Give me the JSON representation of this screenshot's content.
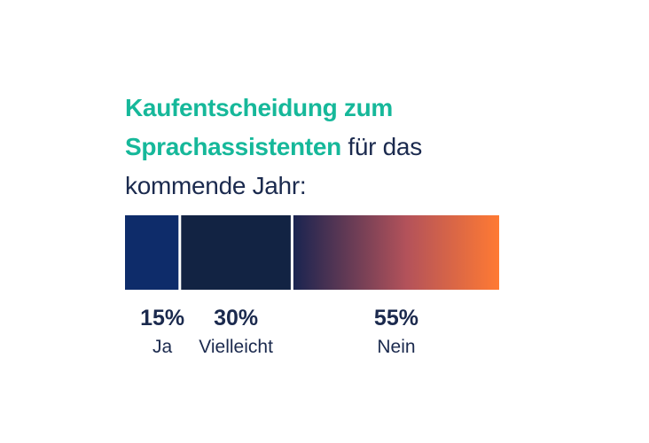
{
  "chart_data": {
    "type": "bar",
    "stacked": true,
    "orientation": "horizontal",
    "title": {
      "highlight": "Kaufentscheidung zum Sprachassistenten",
      "rest": "für das kommende Jahr:"
    },
    "categories": [
      "Ja",
      "Vielleicht",
      "Nein"
    ],
    "values": [
      15,
      30,
      55
    ],
    "labels": [
      "15%",
      "30%",
      "55%"
    ],
    "unit": "%",
    "colors": {
      "ja": "#0e2c6a",
      "vielleicht": "#122343",
      "nein_start": "#1a2450",
      "nein_end": "#ff7a33",
      "title_highlight": "#16b89a",
      "text": "#1b2a4e"
    }
  }
}
